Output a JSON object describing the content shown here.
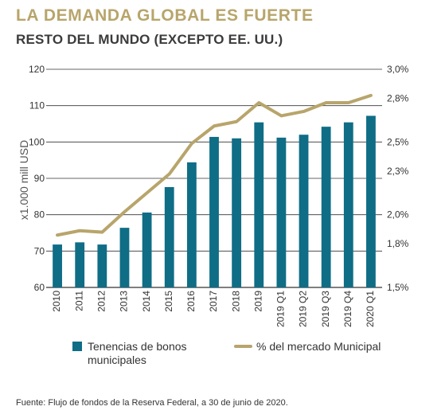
{
  "title": "LA DEMANDA GLOBAL ES FUERTE",
  "subtitle": "RESTO DEL MUNDO (EXCEPTO EE. UU.)",
  "source": "Fuente: Flujo de fondos de la Reserva Federal, a 30 de junio de 2020.",
  "colors": {
    "title": "#b8a56b",
    "subtitle": "#3b3b3b",
    "bar": "#0f6d86",
    "line": "#b8a56b",
    "grid": "#333333",
    "text": "#333333"
  },
  "chart_data": {
    "type": "bar",
    "categories": [
      "2010",
      "2011",
      "2012",
      "2013",
      "2014",
      "2015",
      "2016",
      "2017",
      "2018",
      "2019",
      "2019 Q1",
      "2019 Q2",
      "2019 Q3",
      "2019 Q4",
      "2020 Q1"
    ],
    "series": [
      {
        "name": "Tenencias de bonos municipales",
        "type": "bar",
        "axis": "left",
        "values": [
          71.8,
          72.4,
          71.8,
          76.4,
          80.6,
          87.6,
          94.4,
          101.4,
          101.0,
          105.4,
          101.2,
          102.0,
          104.2,
          105.4,
          107.2
        ]
      },
      {
        "name": "% del mercado Municipal",
        "type": "line",
        "axis": "right",
        "values": [
          1.86,
          1.89,
          1.88,
          2.02,
          2.15,
          2.28,
          2.49,
          2.61,
          2.64,
          2.77,
          2.68,
          2.71,
          2.77,
          2.77,
          2.82
        ]
      }
    ],
    "ylabel": "x1.000 mill USD",
    "ylim": [
      60,
      120
    ],
    "yticks": [
      "60",
      "70",
      "80",
      "90",
      "100",
      "110",
      "120"
    ],
    "y2lim": [
      1.5,
      3.0
    ],
    "y2ticks": [
      "1,5%",
      "1,8%",
      "2,0%",
      "2,3%",
      "2,5%",
      "2,8%",
      "3,0%"
    ],
    "grid": true,
    "legend_position": "bottom"
  }
}
